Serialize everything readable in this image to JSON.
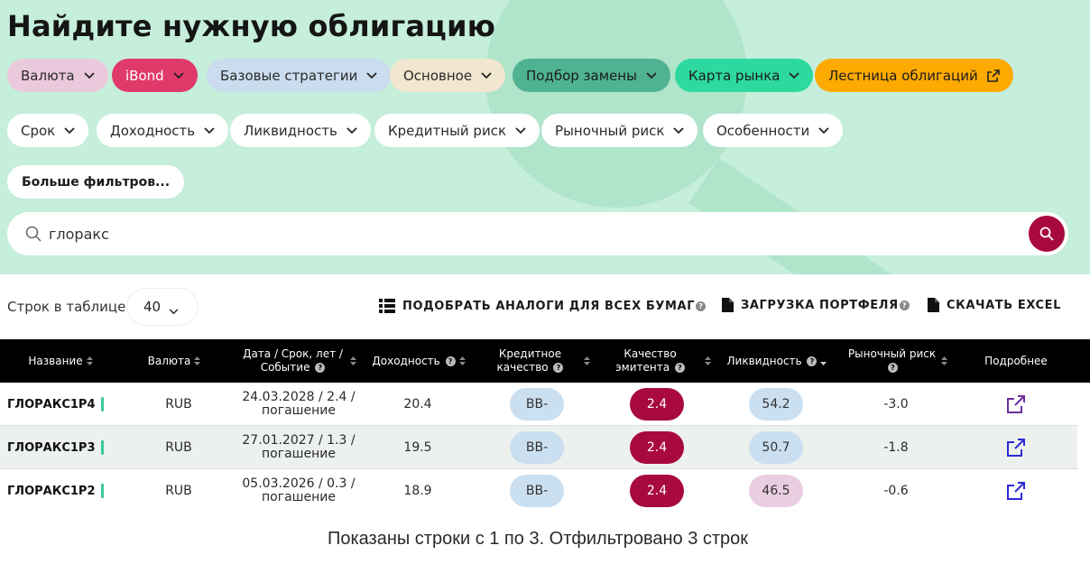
{
  "title": "Найдите нужную облигацию",
  "filters_row1": [
    {
      "label": "Валюта",
      "bg": "#ebc9dc",
      "fg": "#2a2a2a"
    },
    {
      "label": "iBond",
      "bg": "#e03a6a",
      "fg": "#ffffff"
    },
    {
      "label": "Базовые стратегии",
      "bg": "#cadcee",
      "fg": "#2a2a2a"
    },
    {
      "label": "Основное",
      "bg": "#f1e6cf",
      "fg": "#2a2a2a"
    },
    {
      "label": "Подбор замены",
      "bg": "#4fb392",
      "fg": "#1b1b1b"
    },
    {
      "label": "Карта рынка",
      "bg": "#2ed9a0",
      "fg": "#1b1b1b"
    },
    {
      "label": "Лестница облигаций",
      "bg": "#ffaa00",
      "fg": "#1b1b1b"
    }
  ],
  "filters_row2": [
    {
      "label": "Срок"
    },
    {
      "label": "Доходность"
    },
    {
      "label": "Ликвидность"
    },
    {
      "label": "Кредитный риск"
    },
    {
      "label": "Рыночный риск"
    },
    {
      "label": "Особенности"
    }
  ],
  "more_filters": "Больше фильтров...",
  "search": {
    "value": "глоракс"
  },
  "toolbar": {
    "rows_label": "Строк в таблице",
    "rows_value": "40",
    "analogs": "ПОДОБРАТЬ АНАЛОГИ ДЛЯ ВСЕХ БУМАГ",
    "portfolio": "ЗАГРУЗКА ПОРТФЕЛЯ",
    "excel": "СКАЧАТЬ EXCEL"
  },
  "table": {
    "headers": {
      "name": "Название",
      "currency": "Валюта",
      "date": "Дата / Срок, лет / Событие",
      "yield": "Доходность",
      "credit": "Кредитное качество",
      "issuer": "Качество эмитента",
      "liquidity": "Ликвидность",
      "market_risk": "Рыночный риск",
      "details": "Подробнее"
    },
    "rows": [
      {
        "name": "ГЛОРАКС1Р4",
        "currency": "RUB",
        "date_line1": "24.03.2028 / 2.4 /",
        "date_line2": "погашение",
        "yield": "20.4",
        "credit": "BB-",
        "issuer": "2.4",
        "liquidity": "54.2",
        "liquidity_color": "blue",
        "market_risk": "-3.0"
      },
      {
        "name": "ГЛОРАКС1Р3",
        "currency": "RUB",
        "date_line1": "27.01.2027 / 1.3 /",
        "date_line2": "погашение",
        "yield": "19.5",
        "credit": "BB-",
        "issuer": "2.4",
        "liquidity": "50.7",
        "liquidity_color": "blue",
        "market_risk": "-1.8"
      },
      {
        "name": "ГЛОРАКС1Р2",
        "currency": "RUB",
        "date_line1": "05.03.2026 / 0.3 /",
        "date_line2": "погашение",
        "yield": "18.9",
        "credit": "BB-",
        "issuer": "2.4",
        "liquidity": "46.5",
        "liquidity_color": "pink",
        "market_risk": "-0.6"
      }
    ]
  },
  "footer": "Показаны строки с 1 по 3. Отфильтровано 3 строк"
}
